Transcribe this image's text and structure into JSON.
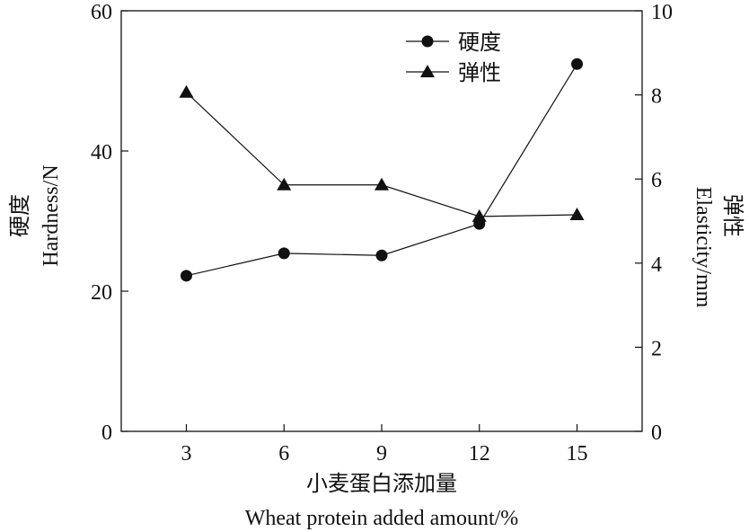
{
  "chart_data": {
    "type": "line",
    "title": "",
    "xlabel": [
      "小麦蛋白添加量",
      "Wheat protein added amount/%"
    ],
    "ylabel_left": [
      "硬度",
      "Hardness/N"
    ],
    "ylabel_right": [
      "Elasticity/mm",
      "弹性"
    ],
    "x": [
      3,
      6,
      9,
      12,
      15
    ],
    "xlim": [
      1,
      17
    ],
    "xticks": [
      "3",
      "6",
      "9",
      "12",
      "15"
    ],
    "ylim_left": [
      0,
      60
    ],
    "yticks_left": [
      "0",
      "20",
      "40",
      "60"
    ],
    "ylim_right": [
      0,
      10
    ],
    "yticks_right": [
      "0",
      "2",
      "4",
      "6",
      "8",
      "10"
    ],
    "grid": false,
    "legend_position": "top-right",
    "series": [
      {
        "name": "硬度",
        "axis": "left",
        "marker": "circle",
        "values": [
          22.2,
          25.4,
          25.1,
          29.6,
          52.4
        ]
      },
      {
        "name": "弹性",
        "axis": "right",
        "marker": "triangle",
        "values": [
          8.06,
          5.86,
          5.86,
          5.11,
          5.15
        ]
      }
    ]
  }
}
